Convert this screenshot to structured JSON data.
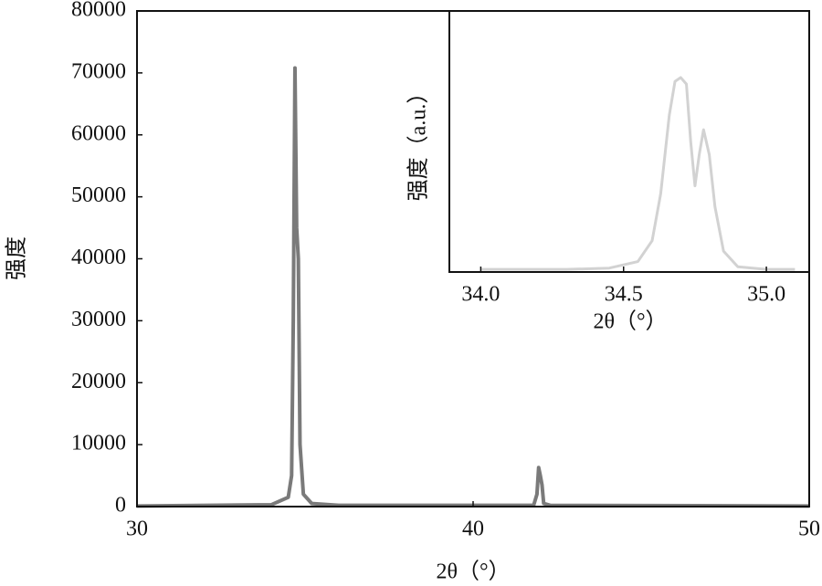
{
  "chart_data": [
    {
      "type": "line",
      "x_label": "2θ（°）",
      "y_label": "强度",
      "xlim": [
        30,
        50
      ],
      "ylim": [
        0,
        80000
      ],
      "xticks": [
        30,
        40,
        50
      ],
      "yticks": [
        0,
        10000,
        20000,
        30000,
        40000,
        50000,
        60000,
        70000,
        80000
      ],
      "x": [
        30,
        34.0,
        34.5,
        34.6,
        34.65,
        34.7,
        34.75,
        34.8,
        34.85,
        34.95,
        35.2,
        36,
        41.8,
        41.9,
        41.95,
        42.0,
        42.05,
        42.1,
        42.3,
        50
      ],
      "series": [
        {
          "color": "#7a7a7a",
          "values": [
            100,
            300,
            1500,
            5000,
            30000,
            70800,
            45000,
            40000,
            10000,
            2000,
            500,
            200,
            200,
            2000,
            6300,
            5000,
            3500,
            500,
            200,
            100
          ]
        }
      ]
    },
    {
      "type": "line",
      "x_label": "2θ（°）",
      "y_label": "强度（a.u.）",
      "xlim": [
        33.89,
        35.15
      ],
      "ylim": [
        0,
        1
      ],
      "xticks": [
        {
          "value": 34.0,
          "label": "34.0"
        },
        {
          "value": 34.5,
          "label": "34.5"
        },
        {
          "value": 35.0,
          "label": "35.0"
        }
      ],
      "x": [
        34.0,
        34.3,
        34.45,
        34.55,
        34.6,
        34.63,
        34.66,
        34.68,
        34.7,
        34.72,
        34.735,
        34.75,
        34.765,
        34.78,
        34.8,
        34.82,
        34.85,
        34.9,
        35.0,
        35.1
      ],
      "series": [
        {
          "color": "#d2d2d2",
          "values": [
            0.01,
            0.01,
            0.015,
            0.04,
            0.12,
            0.3,
            0.6,
            0.73,
            0.745,
            0.72,
            0.5,
            0.33,
            0.45,
            0.545,
            0.45,
            0.25,
            0.08,
            0.02,
            0.01,
            0.01
          ]
        }
      ]
    }
  ]
}
